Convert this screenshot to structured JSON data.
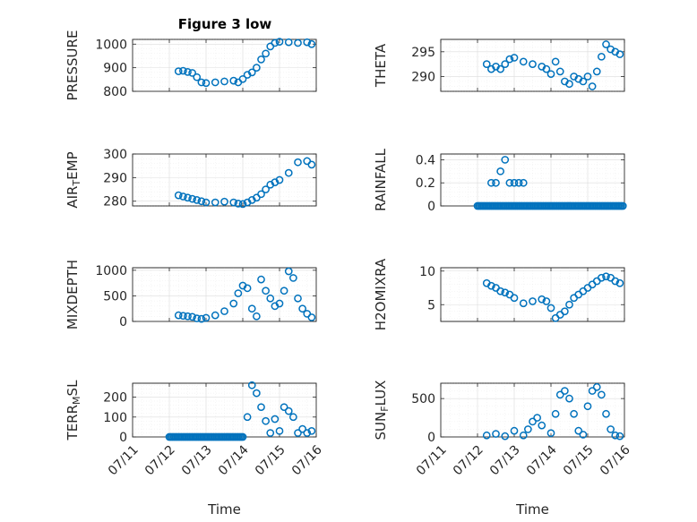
{
  "figure": {
    "title": "Figure 3 low",
    "marker_color": "#0072BD"
  },
  "chart_data": [
    {
      "type": "scatter",
      "title": "Figure 3 low",
      "ylabel": "PRESSURE",
      "ylabel_main": "PRESSURE",
      "xlim": [
        "07/11",
        "07/16"
      ],
      "ylim": [
        800,
        1020
      ],
      "yticks": [
        800,
        900,
        1000
      ],
      "xticklabels": [],
      "x": [
        "07/12 06h",
        "07/12 09h",
        "07/12 12h",
        "07/12 15h",
        "07/12 18h",
        "07/12 21h",
        "07/13 00h",
        "07/13 06h",
        "07/13 12h",
        "07/13 18h",
        "07/13 21h",
        "07/14 00h",
        "07/14 03h",
        "07/14 06h",
        "07/14 09h",
        "07/14 12h",
        "07/14 15h",
        "07/14 18h",
        "07/14 21h",
        "07/15 00h",
        "07/15 06h",
        "07/15 12h",
        "07/15 18h",
        "07/15 21h"
      ],
      "y": [
        885,
        887,
        882,
        878,
        860,
        838,
        835,
        838,
        842,
        845,
        838,
        852,
        870,
        880,
        900,
        935,
        960,
        990,
        1005,
        1010,
        1008,
        1005,
        1008,
        1000
      ]
    },
    {
      "type": "scatter",
      "title": "",
      "ylabel": "THETA",
      "ylabel_main": "THETA",
      "xlim": [
        "07/11",
        "07/16"
      ],
      "ylim": [
        287,
        297.5
      ],
      "yticks": [
        290,
        295
      ],
      "xticklabels": [],
      "x": [
        "07/12 06h",
        "07/12 09h",
        "07/12 12h",
        "07/12 15h",
        "07/12 18h",
        "07/12 21h",
        "07/13 00h",
        "07/13 06h",
        "07/13 12h",
        "07/13 18h",
        "07/13 21h",
        "07/14 00h",
        "07/14 03h",
        "07/14 06h",
        "07/14 09h",
        "07/14 12h",
        "07/14 15h",
        "07/14 18h",
        "07/14 21h",
        "07/15 00h",
        "07/15 03h",
        "07/15 06h",
        "07/15 09h",
        "07/15 12h",
        "07/15 15h",
        "07/15 18h",
        "07/15 21h"
      ],
      "y": [
        292.5,
        291.5,
        292.0,
        291.5,
        292.5,
        293.5,
        293.8,
        293.0,
        292.5,
        292.0,
        291.5,
        290.5,
        293.0,
        291.0,
        289.0,
        288.5,
        290.0,
        289.5,
        289.0,
        290.0,
        288.0,
        291.0,
        294.0,
        296.5,
        295.5,
        295.0,
        294.5
      ]
    },
    {
      "type": "scatter",
      "title": "",
      "ylabel": "AIR_TEMP",
      "ylabel_main": "AIR",
      "ylabel_sub": "T",
      "ylabel_tail": "EMP",
      "xlim": [
        "07/11",
        "07/16"
      ],
      "ylim": [
        278,
        300
      ],
      "yticks": [
        280,
        290,
        300
      ],
      "xticklabels": [],
      "x": [
        "07/12 06h",
        "07/12 09h",
        "07/12 12h",
        "07/12 15h",
        "07/12 18h",
        "07/12 21h",
        "07/13 00h",
        "07/13 06h",
        "07/13 12h",
        "07/13 18h",
        "07/13 21h",
        "07/14 00h",
        "07/14 03h",
        "07/14 06h",
        "07/14 09h",
        "07/14 12h",
        "07/14 15h",
        "07/14 18h",
        "07/14 21h",
        "07/15 00h",
        "07/15 06h",
        "07/15 12h",
        "07/15 18h",
        "07/15 21h"
      ],
      "y": [
        282.5,
        282.0,
        281.5,
        281.0,
        280.5,
        280.0,
        279.5,
        279.5,
        279.8,
        279.5,
        279.0,
        278.8,
        279.5,
        280.5,
        281.5,
        283.0,
        285.0,
        287.0,
        288.0,
        289.0,
        292.0,
        296.5,
        297.0,
        295.5
      ]
    },
    {
      "type": "scatter",
      "title": "",
      "ylabel": "RAINFALL",
      "ylabel_main": "RAINFALL",
      "xlim": [
        "07/11",
        "07/16"
      ],
      "ylim": [
        0,
        0.45
      ],
      "yticks": [
        0,
        0.2,
        0.4
      ],
      "ytickformat": "0.1",
      "xticklabels": [],
      "baseline_value": 0,
      "baseline_range": [
        "07/12 00h",
        "07/15 23h"
      ],
      "x": [
        "07/12 09h",
        "07/12 12h",
        "07/12 15h",
        "07/12 18h",
        "07/12 21h",
        "07/13 00h",
        "07/13 03h",
        "07/13 06h"
      ],
      "y": [
        0.2,
        0.2,
        0.3,
        0.4,
        0.2,
        0.2,
        0.2,
        0.2
      ]
    },
    {
      "type": "scatter",
      "title": "",
      "ylabel": "MIXDEPTH",
      "ylabel_main": "MIXDEPTH",
      "xlim": [
        "07/11",
        "07/16"
      ],
      "ylim": [
        0,
        1050
      ],
      "yticks": [
        0,
        500,
        1000
      ],
      "xticklabels": [],
      "x": [
        "07/12 06h",
        "07/12 09h",
        "07/12 12h",
        "07/12 15h",
        "07/12 18h",
        "07/12 21h",
        "07/13 00h",
        "07/13 06h",
        "07/13 12h",
        "07/13 18h",
        "07/13 21h",
        "07/14 00h",
        "07/14 03h",
        "07/14 06h",
        "07/14 09h",
        "07/14 12h",
        "07/14 15h",
        "07/14 18h",
        "07/14 21h",
        "07/15 00h",
        "07/15 03h",
        "07/15 06h",
        "07/15 09h",
        "07/15 12h",
        "07/15 15h",
        "07/15 18h",
        "07/15 21h"
      ],
      "y": [
        120,
        110,
        100,
        90,
        60,
        50,
        70,
        120,
        200,
        350,
        550,
        700,
        650,
        250,
        100,
        820,
        600,
        450,
        300,
        350,
        600,
        980,
        850,
        450,
        250,
        150,
        80
      ]
    },
    {
      "type": "scatter",
      "title": "",
      "ylabel": "H2OMIXRA",
      "ylabel_main": "H2OMIXRA",
      "xlim": [
        "07/11",
        "07/16"
      ],
      "ylim": [
        2.5,
        10.5
      ],
      "yticks": [
        5,
        10
      ],
      "xticklabels": [],
      "x": [
        "07/12 06h",
        "07/12 09h",
        "07/12 12h",
        "07/12 15h",
        "07/12 18h",
        "07/12 21h",
        "07/13 00h",
        "07/13 06h",
        "07/13 12h",
        "07/13 18h",
        "07/13 21h",
        "07/14 00h",
        "07/14 03h",
        "07/14 06h",
        "07/14 09h",
        "07/14 12h",
        "07/14 15h",
        "07/14 18h",
        "07/14 21h",
        "07/15 00h",
        "07/15 03h",
        "07/15 06h",
        "07/15 09h",
        "07/15 12h",
        "07/15 15h",
        "07/15 18h",
        "07/15 21h"
      ],
      "y": [
        8.2,
        7.8,
        7.5,
        7.0,
        6.8,
        6.5,
        6.0,
        5.2,
        5.5,
        5.8,
        5.5,
        4.5,
        3.0,
        3.5,
        4.0,
        5.0,
        6.0,
        6.5,
        7.0,
        7.5,
        8.0,
        8.5,
        9.0,
        9.2,
        9.0,
        8.5,
        8.2
      ]
    },
    {
      "type": "scatter",
      "title": "",
      "ylabel": "TERR_MSL",
      "ylabel_main": "TERR",
      "ylabel_sub": "M",
      "ylabel_tail": "SL",
      "xlim": [
        "07/11",
        "07/16"
      ],
      "ylim": [
        0,
        270
      ],
      "yticks": [
        0,
        100,
        200
      ],
      "xlabel": "Time",
      "xticklabels": [
        "07/11",
        "07/12",
        "07/13",
        "07/14",
        "07/15",
        "07/16"
      ],
      "baseline_value": 0,
      "baseline_range": [
        "07/12 00h",
        "07/14 00h"
      ],
      "x": [
        "07/14 03h",
        "07/14 06h",
        "07/14 09h",
        "07/14 12h",
        "07/14 15h",
        "07/14 18h",
        "07/14 21h",
        "07/15 00h",
        "07/15 03h",
        "07/15 06h",
        "07/15 09h",
        "07/15 12h",
        "07/15 15h",
        "07/15 18h",
        "07/15 21h"
      ],
      "y": [
        100,
        260,
        220,
        150,
        80,
        20,
        90,
        30,
        150,
        130,
        100,
        20,
        40,
        20,
        30
      ]
    },
    {
      "type": "scatter",
      "title": "",
      "ylabel": "SUN_FLUX",
      "ylabel_main": "SUN",
      "ylabel_sub": "F",
      "ylabel_tail": "LUX",
      "xlim": [
        "07/11",
        "07/16"
      ],
      "ylim": [
        0,
        700
      ],
      "yticks": [
        0,
        500
      ],
      "xlabel": "Time",
      "xticklabels": [
        "07/11",
        "07/12",
        "07/13",
        "07/14",
        "07/15",
        "07/16"
      ],
      "x": [
        "07/12 06h",
        "07/12 12h",
        "07/12 18h",
        "07/13 00h",
        "07/13 06h",
        "07/13 09h",
        "07/13 12h",
        "07/13 15h",
        "07/13 18h",
        "07/14 00h",
        "07/14 03h",
        "07/14 06h",
        "07/14 09h",
        "07/14 12h",
        "07/14 15h",
        "07/14 18h",
        "07/14 21h",
        "07/15 00h",
        "07/15 03h",
        "07/15 06h",
        "07/15 09h",
        "07/15 12h",
        "07/15 15h",
        "07/15 18h",
        "07/15 21h"
      ],
      "y": [
        20,
        40,
        10,
        80,
        20,
        100,
        200,
        250,
        150,
        50,
        300,
        550,
        600,
        500,
        300,
        80,
        30,
        400,
        600,
        650,
        550,
        300,
        100,
        20,
        10
      ]
    }
  ]
}
